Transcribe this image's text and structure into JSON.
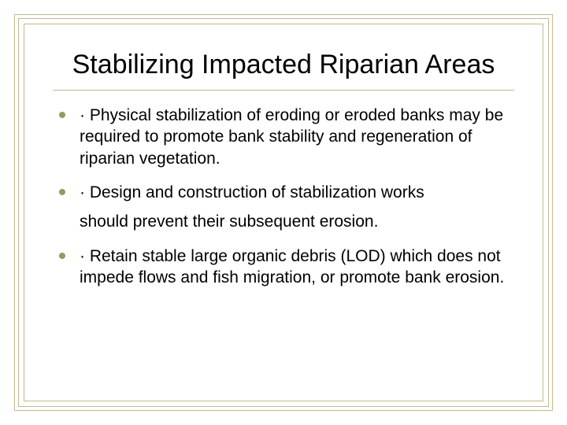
{
  "colors": {
    "border": "#c7b88f",
    "divider": "#c7b88f",
    "bullet": "#8f9e5e",
    "text": "#000000",
    "background": "#ffffff"
  },
  "title": "Stabilizing Impacted Riparian Areas",
  "bullets": [
    {
      "text": "· Physical stabilization of eroding or eroded banks may be required to promote bank stability and regeneration of riparian vegetation.",
      "sub": null
    },
    {
      "text": "· Design and construction of stabilization works",
      "sub": "should prevent their subsequent erosion."
    },
    {
      "text": "· Retain stable large organic debris (LOD) which   does not impede flows and fish migration, or   promote bank erosion.",
      "sub": null
    }
  ]
}
